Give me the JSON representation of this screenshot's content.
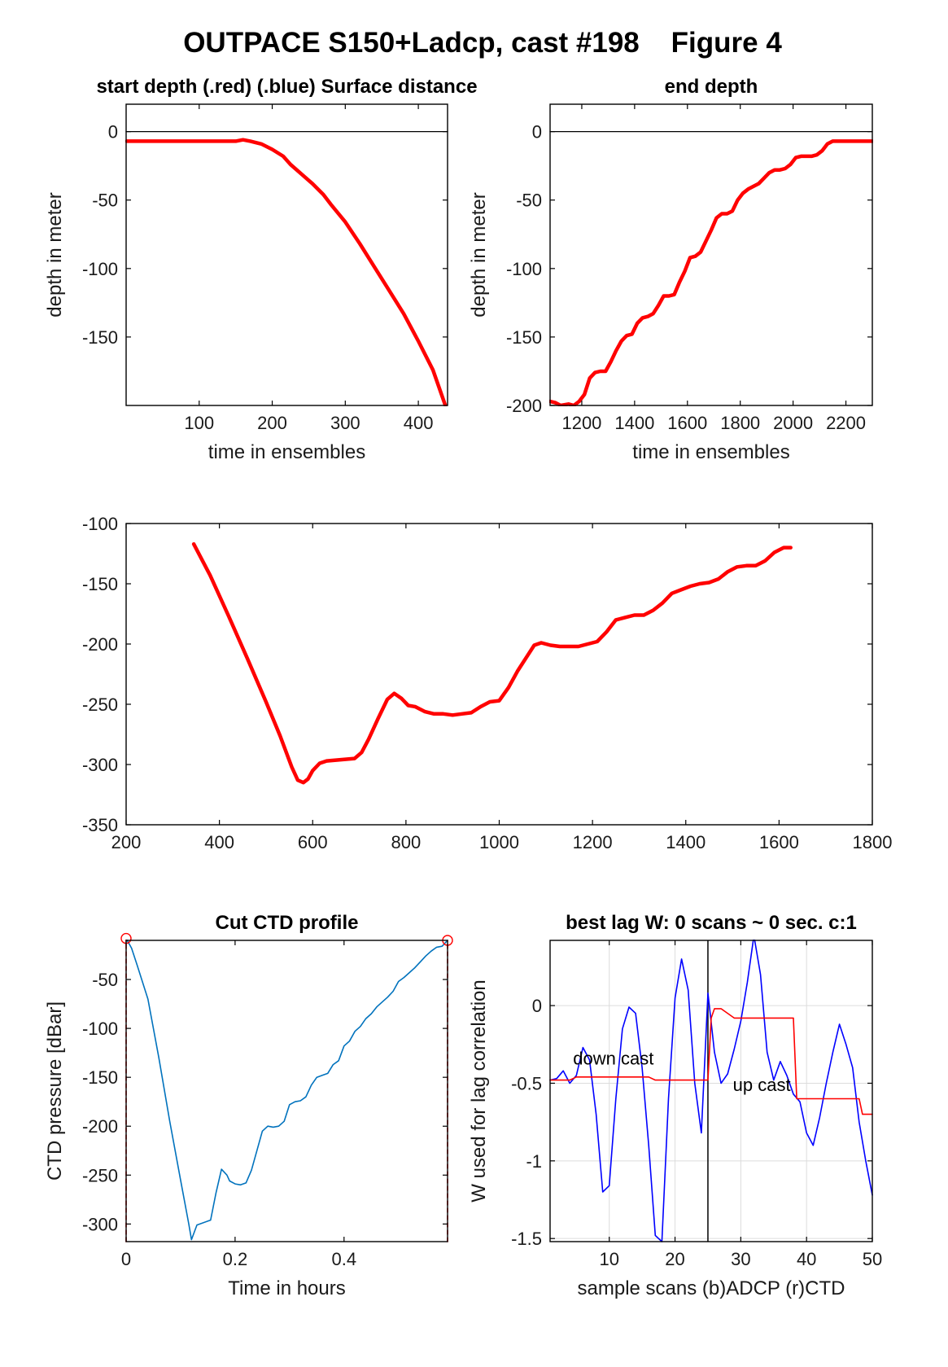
{
  "figure": {
    "title": "OUTPACE S150+Ladcp, cast #198    Figure 4"
  },
  "chart_data": [
    {
      "type": "line",
      "title": "start depth (.red) (.blue) Surface distance",
      "xlabel": "time in ensembles",
      "ylabel": "depth in meter",
      "xlim": [
        0,
        440
      ],
      "ylim": [
        -200,
        20
      ],
      "xticks": [
        100,
        200,
        300,
        400
      ],
      "yticks": [
        0,
        -50,
        -100,
        -150
      ],
      "grid": false,
      "series": [
        {
          "color": "#ff0000",
          "x": [
            1,
            50,
            100,
            150,
            160,
            170,
            185,
            200,
            215,
            225,
            240,
            255,
            270,
            280,
            300,
            320,
            340,
            360,
            380,
            400,
            420,
            437
          ],
          "y": [
            -7,
            -7,
            -7,
            -7,
            -6,
            -7,
            -9,
            -13,
            -18,
            -24,
            -31,
            -38,
            -46,
            -53,
            -66,
            -82,
            -99,
            -116,
            -133,
            -153,
            -174,
            -200
          ]
        },
        {
          "color": "#000000",
          "x": [
            0,
            440
          ],
          "y": [
            0,
            0
          ]
        }
      ]
    },
    {
      "type": "line",
      "title": "end depth",
      "xlabel": "time in ensembles",
      "ylabel": "depth in meter",
      "xlim": [
        1080,
        2300
      ],
      "ylim": [
        -200,
        20
      ],
      "xticks": [
        1200,
        1400,
        1600,
        1800,
        2000,
        2200
      ],
      "yticks": [
        0,
        -50,
        -100,
        -150,
        -200
      ],
      "grid": false,
      "series": [
        {
          "color": "#ff0000",
          "x": [
            1080,
            1100,
            1120,
            1150,
            1170,
            1190,
            1210,
            1230,
            1250,
            1270,
            1290,
            1310,
            1330,
            1350,
            1370,
            1390,
            1410,
            1430,
            1450,
            1470,
            1490,
            1510,
            1530,
            1550,
            1570,
            1590,
            1610,
            1630,
            1650,
            1670,
            1690,
            1710,
            1730,
            1750,
            1770,
            1790,
            1810,
            1830,
            1850,
            1870,
            1890,
            1910,
            1930,
            1950,
            1970,
            1990,
            2010,
            2030,
            2050,
            2070,
            2090,
            2110,
            2130,
            2150,
            2170,
            2190,
            2210,
            2230,
            2250,
            2300
          ],
          "y": [
            -197,
            -198,
            -200,
            -199,
            -200,
            -197,
            -192,
            -180,
            -176,
            -175,
            -175,
            -168,
            -160,
            -153,
            -149,
            -148,
            -140,
            -136,
            -135,
            -133,
            -127,
            -120,
            -120,
            -119,
            -110,
            -102,
            -92,
            -91,
            -88,
            -80,
            -72,
            -63,
            -60,
            -60,
            -58,
            -50,
            -45,
            -42,
            -40,
            -38,
            -34,
            -30,
            -28,
            -28,
            -27,
            -24,
            -19,
            -18,
            -18,
            -18,
            -17,
            -14,
            -9,
            -7,
            -7,
            -7,
            -7,
            -7,
            -7,
            -7
          ]
        },
        {
          "color": "#000000",
          "x": [
            1080,
            2300
          ],
          "y": [
            0,
            0
          ]
        }
      ]
    },
    {
      "type": "line",
      "title": "",
      "xlabel": "",
      "ylabel": "",
      "xlim": [
        200,
        1800
      ],
      "ylim": [
        -350,
        -100
      ],
      "xticks": [
        200,
        400,
        600,
        800,
        1000,
        1200,
        1400,
        1600,
        1800
      ],
      "yticks": [
        -100,
        -150,
        -200,
        -250,
        -300,
        -350
      ],
      "grid": false,
      "series": [
        {
          "color": "#ff0000",
          "x": [
            345,
            380,
            420,
            460,
            500,
            530,
            555,
            568,
            580,
            590,
            600,
            615,
            630,
            660,
            690,
            705,
            720,
            740,
            760,
            775,
            790,
            805,
            820,
            840,
            860,
            880,
            900,
            920,
            940,
            960,
            980,
            1000,
            1020,
            1040,
            1060,
            1075,
            1090,
            1110,
            1130,
            1150,
            1170,
            1190,
            1210,
            1230,
            1250,
            1270,
            1290,
            1310,
            1330,
            1350,
            1370,
            1390,
            1410,
            1430,
            1450,
            1470,
            1490,
            1510,
            1530,
            1550,
            1570,
            1590,
            1610,
            1625
          ],
          "y": [
            -117,
            -143,
            -177,
            -212,
            -248,
            -276,
            -302,
            -313,
            -315,
            -312,
            -305,
            -299,
            -297,
            -296,
            -295,
            -290,
            -279,
            -262,
            -246,
            -241,
            -245,
            -251,
            -252,
            -256,
            -258,
            -258,
            -259,
            -258,
            -257,
            -252,
            -248,
            -247,
            -236,
            -222,
            -210,
            -201,
            -199,
            -201,
            -202,
            -202,
            -202,
            -200,
            -198,
            -190,
            -180,
            -178,
            -176,
            -176,
            -172,
            -166,
            -158,
            -155,
            -152,
            -150,
            -149,
            -146,
            -140,
            -136,
            -135,
            -135,
            -131,
            -124,
            -120,
            -120
          ]
        }
      ]
    },
    {
      "type": "line",
      "title": "Cut CTD profile",
      "xlabel": "Time in hours",
      "ylabel": "CTD pressure [dBar]",
      "xlim": [
        0,
        0.59
      ],
      "ylim": [
        -318,
        -10
      ],
      "xticks": [
        0,
        0.2,
        0.4
      ],
      "xticklabels": [
        "0",
        "0.2",
        "0.4"
      ],
      "yticks": [
        -50,
        -100,
        -150,
        -200,
        -250,
        -300
      ],
      "grid": false,
      "series": [
        {
          "color": "#0072bd",
          "x": [
            0.0,
            0.01,
            0.02,
            0.04,
            0.06,
            0.08,
            0.1,
            0.115,
            0.12,
            0.13,
            0.15,
            0.155,
            0.165,
            0.175,
            0.185,
            0.19,
            0.2,
            0.21,
            0.22,
            0.23,
            0.24,
            0.25,
            0.26,
            0.27,
            0.28,
            0.29,
            0.3,
            0.31,
            0.32,
            0.33,
            0.34,
            0.35,
            0.36,
            0.37,
            0.38,
            0.39,
            0.4,
            0.41,
            0.42,
            0.43,
            0.44,
            0.45,
            0.46,
            0.47,
            0.48,
            0.49,
            0.5,
            0.51,
            0.52,
            0.53,
            0.54,
            0.55,
            0.56,
            0.57,
            0.58,
            0.59
          ],
          "y": [
            -8,
            -18,
            -35,
            -70,
            -130,
            -195,
            -255,
            -300,
            -316,
            -301,
            -297,
            -296,
            -268,
            -244,
            -250,
            -256,
            -259,
            -260,
            -258,
            -245,
            -225,
            -205,
            -200,
            -201,
            -200,
            -195,
            -178,
            -175,
            -174,
            -170,
            -158,
            -150,
            -148,
            -146,
            -137,
            -133,
            -118,
            -113,
            -103,
            -98,
            -90,
            -85,
            -78,
            -73,
            -68,
            -62,
            -52,
            -48,
            -43,
            -38,
            -32,
            -26,
            -21,
            -17,
            -16,
            -10
          ]
        },
        {
          "color": "#ff0000",
          "dashed": true,
          "x": [
            0,
            0
          ],
          "y": [
            -318,
            -8
          ]
        },
        {
          "color": "#ff0000",
          "dashed": true,
          "x": [
            0.59,
            0.59
          ],
          "y": [
            -318,
            -10
          ]
        }
      ],
      "markers": [
        {
          "color": "#ff0000",
          "shape": "circle",
          "x": 0,
          "y": -8
        },
        {
          "color": "#ff0000",
          "shape": "circle",
          "x": 0.59,
          "y": -10
        }
      ]
    },
    {
      "type": "line",
      "title": "best lag W: 0 scans ~ 0 sec.  c:1",
      "xlabel": "sample scans (b)ADCP (r)CTD",
      "ylabel": "W used for lag correlation",
      "xlim": [
        1,
        50
      ],
      "ylim": [
        -1.52,
        0.42
      ],
      "xticks": [
        10,
        20,
        30,
        40,
        50
      ],
      "yticks": [
        0,
        -0.5,
        -1,
        -1.5
      ],
      "grid": true,
      "annotations": [
        {
          "text": "down cast",
          "x": 4.5,
          "y": -0.38
        },
        {
          "text": "up cast",
          "x": 28.8,
          "y": -0.55
        }
      ],
      "vline": {
        "x": 25,
        "color": "#000000"
      },
      "series": [
        {
          "name": "ADCP",
          "color": "#0000ff",
          "x": [
            1,
            2,
            3,
            4,
            5,
            6,
            7,
            8,
            9,
            10,
            11,
            12,
            13,
            14,
            15,
            16,
            17,
            18,
            19,
            20,
            21,
            22,
            23,
            24,
            25,
            26,
            27,
            28,
            29,
            30,
            31,
            32,
            33,
            34,
            35,
            36,
            37,
            38,
            39,
            40,
            41,
            42,
            43,
            44,
            45,
            46,
            47,
            48,
            49,
            50
          ],
          "y": [
            -0.48,
            -0.47,
            -0.42,
            -0.5,
            -0.45,
            -0.27,
            -0.35,
            -0.7,
            -1.2,
            -1.16,
            -0.6,
            -0.15,
            -0.01,
            -0.05,
            -0.4,
            -0.9,
            -1.48,
            -1.52,
            -0.6,
            0.05,
            0.3,
            0.1,
            -0.5,
            -0.82,
            0.08,
            -0.3,
            -0.5,
            -0.44,
            -0.28,
            -0.1,
            0.15,
            0.45,
            0.2,
            -0.3,
            -0.48,
            -0.36,
            -0.45,
            -0.57,
            -0.62,
            -0.82,
            -0.9,
            -0.72,
            -0.5,
            -0.3,
            -0.12,
            -0.25,
            -0.4,
            -0.75,
            -1.0,
            -1.22
          ]
        },
        {
          "name": "CTD",
          "color": "#ff0000",
          "x": [
            1,
            4,
            5,
            6,
            7,
            8,
            9,
            10,
            11,
            12,
            13,
            14,
            15,
            16,
            17,
            18,
            19,
            20,
            21,
            22,
            23,
            24,
            25,
            25.5,
            26,
            27,
            28,
            29,
            30,
            31,
            32,
            33,
            34,
            35,
            36,
            37,
            38,
            38.5,
            39,
            40,
            41,
            42,
            43,
            44,
            45,
            46,
            47,
            48,
            48.5,
            49,
            50
          ],
          "y": [
            -0.48,
            -0.48,
            -0.46,
            -0.46,
            -0.46,
            -0.46,
            -0.46,
            -0.46,
            -0.46,
            -0.46,
            -0.46,
            -0.46,
            -0.46,
            -0.46,
            -0.48,
            -0.48,
            -0.48,
            -0.48,
            -0.48,
            -0.48,
            -0.48,
            -0.48,
            -0.48,
            -0.08,
            -0.02,
            -0.02,
            -0.05,
            -0.08,
            -0.08,
            -0.08,
            -0.08,
            -0.08,
            -0.08,
            -0.08,
            -0.08,
            -0.08,
            -0.08,
            -0.6,
            -0.6,
            -0.6,
            -0.6,
            -0.6,
            -0.6,
            -0.6,
            -0.6,
            -0.6,
            -0.6,
            -0.6,
            -0.7,
            -0.7,
            -0.7
          ]
        }
      ]
    }
  ]
}
